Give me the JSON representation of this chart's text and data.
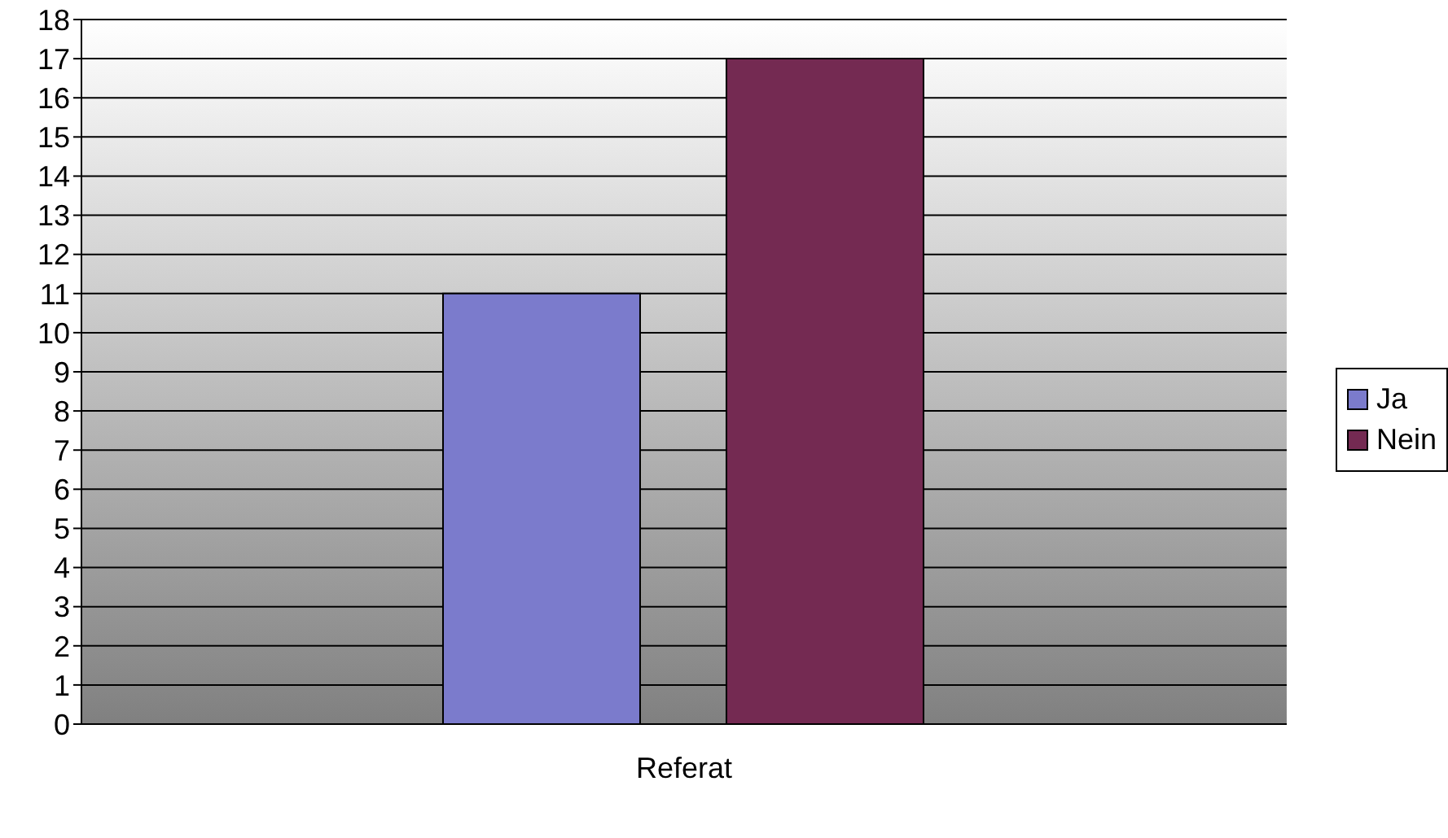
{
  "chart_data": {
    "type": "bar",
    "categories": [
      "Referat"
    ],
    "series": [
      {
        "name": "Ja",
        "color": "#7b7bcc",
        "values": [
          11
        ]
      },
      {
        "name": "Nein",
        "color": "#742a52",
        "values": [
          17
        ]
      }
    ],
    "ylim": [
      0,
      18
    ],
    "yticks": [
      0,
      1,
      2,
      3,
      4,
      5,
      6,
      7,
      8,
      9,
      10,
      11,
      12,
      13,
      14,
      15,
      16,
      17,
      18
    ],
    "grid": "y",
    "legend": "right"
  }
}
